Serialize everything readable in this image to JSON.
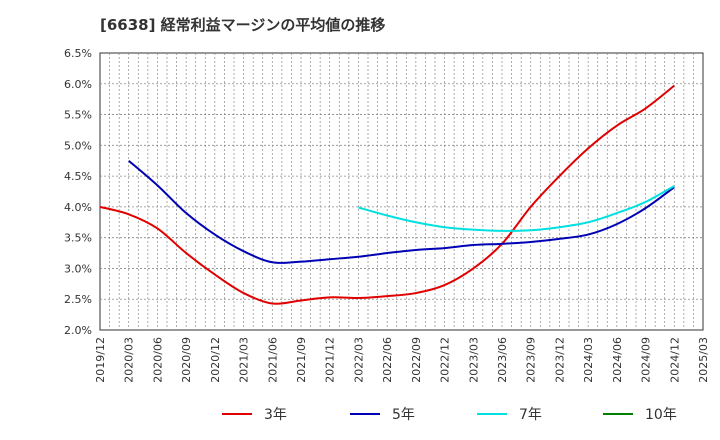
{
  "chart_data": {
    "type": "line",
    "title": "[6638]  経常利益マージンの平均値の推移",
    "xlabel": "",
    "ylabel": "",
    "ylim": [
      2.0,
      6.5
    ],
    "y_ticks": [
      "2.0%",
      "2.5%",
      "3.0%",
      "3.5%",
      "4.0%",
      "4.5%",
      "5.0%",
      "5.5%",
      "6.0%",
      "6.5%"
    ],
    "x_range": [
      "2019/12",
      "2025/03"
    ],
    "x_ticks": [
      "2019/12",
      "2020/03",
      "2020/06",
      "2020/09",
      "2020/12",
      "2021/03",
      "2021/06",
      "2021/09",
      "2021/12",
      "2022/03",
      "2022/06",
      "2022/09",
      "2022/12",
      "2023/03",
      "2023/06",
      "2023/09",
      "2023/12",
      "2024/03",
      "2024/06",
      "2024/09",
      "2024/12",
      "2025/03"
    ],
    "grid": true,
    "legend_position": "bottom",
    "series": [
      {
        "name": "3年",
        "color": "#e00000",
        "points": [
          {
            "x": "2019/12",
            "y": 4.0
          },
          {
            "x": "2020/03",
            "y": 3.88
          },
          {
            "x": "2020/06",
            "y": 3.65
          },
          {
            "x": "2020/09",
            "y": 3.25
          },
          {
            "x": "2020/12",
            "y": 2.9
          },
          {
            "x": "2021/03",
            "y": 2.6
          },
          {
            "x": "2021/06",
            "y": 2.43
          },
          {
            "x": "2021/09",
            "y": 2.48
          },
          {
            "x": "2021/12",
            "y": 2.53
          },
          {
            "x": "2022/03",
            "y": 2.52
          },
          {
            "x": "2022/06",
            "y": 2.55
          },
          {
            "x": "2022/09",
            "y": 2.6
          },
          {
            "x": "2022/12",
            "y": 2.73
          },
          {
            "x": "2023/03",
            "y": 3.0
          },
          {
            "x": "2023/06",
            "y": 3.4
          },
          {
            "x": "2023/09",
            "y": 4.0
          },
          {
            "x": "2023/12",
            "y": 4.5
          },
          {
            "x": "2024/03",
            "y": 4.95
          },
          {
            "x": "2024/06",
            "y": 5.32
          },
          {
            "x": "2024/09",
            "y": 5.6
          },
          {
            "x": "2024/12",
            "y": 5.97
          }
        ]
      },
      {
        "name": "5年",
        "color": "#0000b4",
        "points": [
          {
            "x": "2020/03",
            "y": 4.75
          },
          {
            "x": "2020/06",
            "y": 4.35
          },
          {
            "x": "2020/09",
            "y": 3.9
          },
          {
            "x": "2020/12",
            "y": 3.55
          },
          {
            "x": "2021/03",
            "y": 3.28
          },
          {
            "x": "2021/06",
            "y": 3.1
          },
          {
            "x": "2021/09",
            "y": 3.11
          },
          {
            "x": "2021/12",
            "y": 3.15
          },
          {
            "x": "2022/03",
            "y": 3.19
          },
          {
            "x": "2022/06",
            "y": 3.25
          },
          {
            "x": "2022/09",
            "y": 3.3
          },
          {
            "x": "2022/12",
            "y": 3.33
          },
          {
            "x": "2023/03",
            "y": 3.38
          },
          {
            "x": "2023/06",
            "y": 3.4
          },
          {
            "x": "2023/09",
            "y": 3.43
          },
          {
            "x": "2023/12",
            "y": 3.48
          },
          {
            "x": "2024/03",
            "y": 3.55
          },
          {
            "x": "2024/06",
            "y": 3.72
          },
          {
            "x": "2024/09",
            "y": 3.98
          },
          {
            "x": "2024/12",
            "y": 4.32
          }
        ]
      },
      {
        "name": "7年",
        "color": "#00e0e0",
        "points": [
          {
            "x": "2022/03",
            "y": 3.99
          },
          {
            "x": "2022/06",
            "y": 3.86
          },
          {
            "x": "2022/09",
            "y": 3.75
          },
          {
            "x": "2022/12",
            "y": 3.67
          },
          {
            "x": "2023/03",
            "y": 3.63
          },
          {
            "x": "2023/06",
            "y": 3.61
          },
          {
            "x": "2023/09",
            "y": 3.62
          },
          {
            "x": "2023/12",
            "y": 3.67
          },
          {
            "x": "2024/03",
            "y": 3.75
          },
          {
            "x": "2024/06",
            "y": 3.9
          },
          {
            "x": "2024/09",
            "y": 4.08
          },
          {
            "x": "2024/12",
            "y": 4.34
          }
        ]
      },
      {
        "name": "10年",
        "color": "#008000",
        "points": []
      }
    ]
  }
}
